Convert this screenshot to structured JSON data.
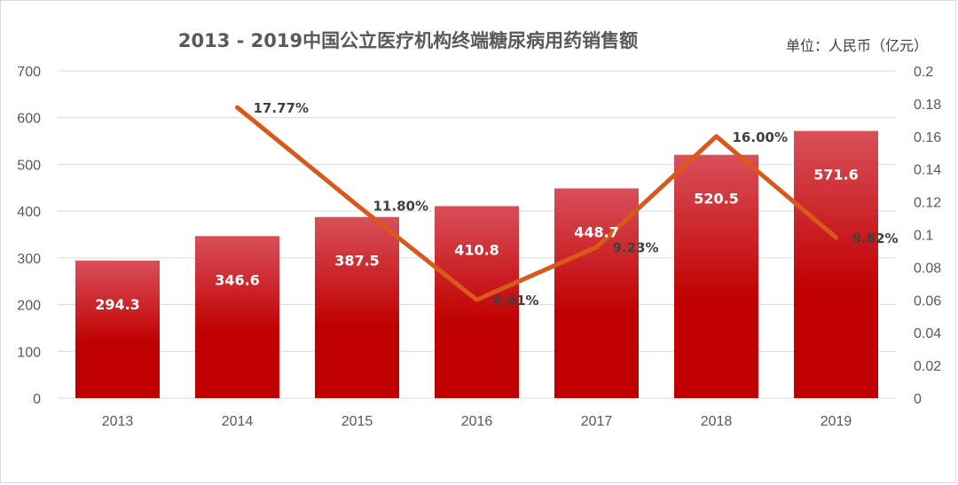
{
  "title": "2013 - 2019中国公立医疗机构终端糖尿病用药销售额",
  "unit_label": "单位：人民币（亿元）",
  "chart_data": {
    "type": "bar+line",
    "categories": [
      "2013",
      "2014",
      "2015",
      "2016",
      "2017",
      "2018",
      "2019"
    ],
    "bar_series": {
      "values": [
        294.3,
        346.6,
        387.5,
        410.8,
        448.7,
        520.5,
        571.6
      ],
      "labels": [
        "294.3",
        "346.6",
        "387.5",
        "410.8",
        "448.7",
        "520.5",
        "571.6"
      ],
      "color_top": "#d9505a",
      "color_bottom": "#c00000"
    },
    "line_series": {
      "values": [
        null,
        0.1777,
        0.118,
        0.0601,
        0.0923,
        0.16,
        0.0982
      ],
      "labels": [
        null,
        "17.77%",
        "11.80%",
        "6.01%",
        "9.23%",
        "16.00%",
        "9.82%"
      ],
      "color": "#d9591b"
    },
    "y_left": {
      "ylim": [
        0,
        700
      ],
      "ticks": [
        "0",
        "100",
        "200",
        "300",
        "400",
        "500",
        "600",
        "700"
      ]
    },
    "y_right": {
      "ylim": [
        0,
        0.2
      ],
      "ticks": [
        "0",
        "0.02",
        "0.04",
        "0.06",
        "0.08",
        "0.1",
        "0.12",
        "0.14",
        "0.16",
        "0.18",
        "0.2"
      ]
    },
    "grid": true,
    "legend": "none"
  }
}
